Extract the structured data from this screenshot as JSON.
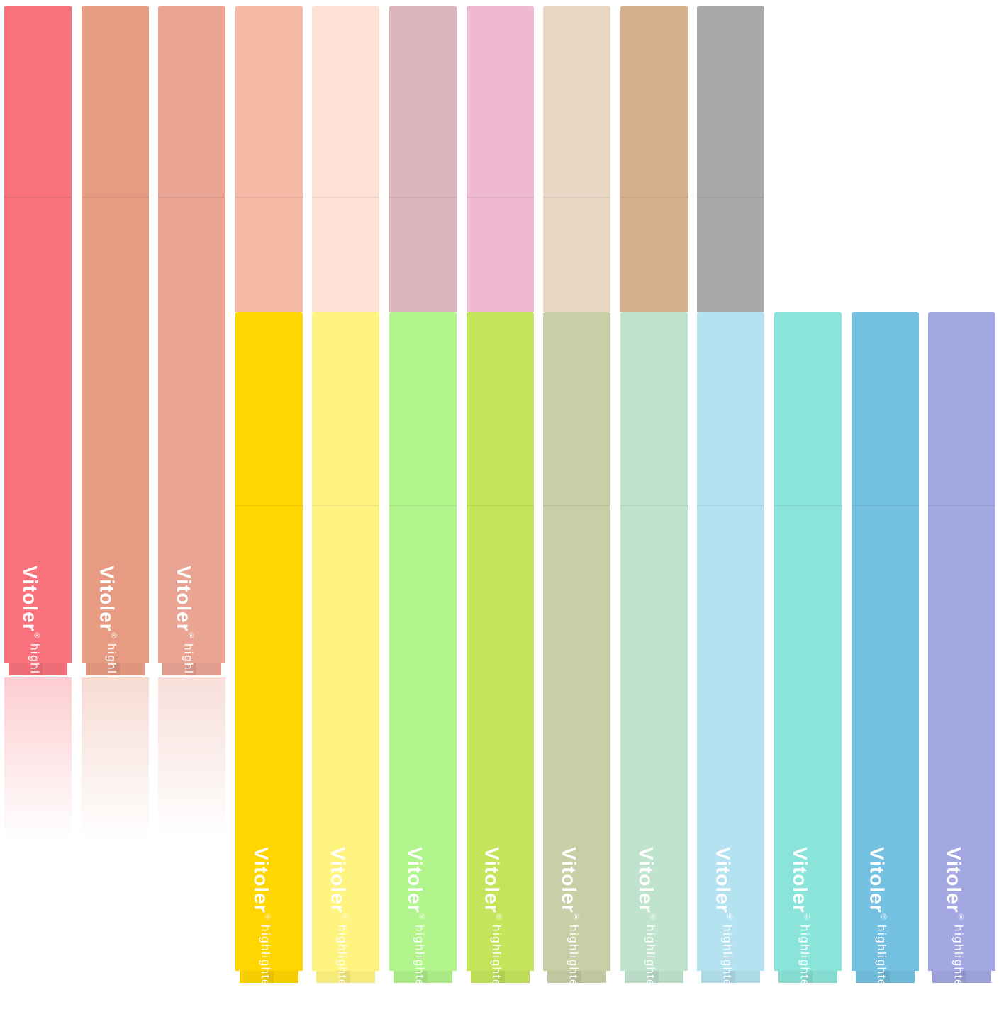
{
  "brand": {
    "name": "Vitoler",
    "registered": "®",
    "product": "highlighter"
  },
  "top_row": [
    {
      "color": "#f8727c",
      "full": true
    },
    {
      "color": "#e89b83",
      "full": true
    },
    {
      "color": "#e9a494",
      "full": true
    },
    {
      "color": "#f6b9a5",
      "full": false
    },
    {
      "color": "#fde0d6",
      "full": false
    },
    {
      "color": "#dcb6bc",
      "full": false
    },
    {
      "color": "#efb9d1",
      "full": false
    },
    {
      "color": "#e8d8c5",
      "full": false
    },
    {
      "color": "#d7b18d",
      "full": false
    },
    {
      "color": "#a9a9a9",
      "full": false
    }
  ],
  "bottom_row": [
    {
      "color": "#ffd600"
    },
    {
      "color": "#fff47f"
    },
    {
      "color": "#b1f48c"
    },
    {
      "color": "#c4e55b"
    },
    {
      "color": "#c6cfa6"
    },
    {
      "color": "#c0e3ce"
    },
    {
      "color": "#b5e2f1"
    },
    {
      "color": "#8be4d9"
    },
    {
      "color": "#74c1e1"
    },
    {
      "color": "#a3a7e2"
    }
  ]
}
